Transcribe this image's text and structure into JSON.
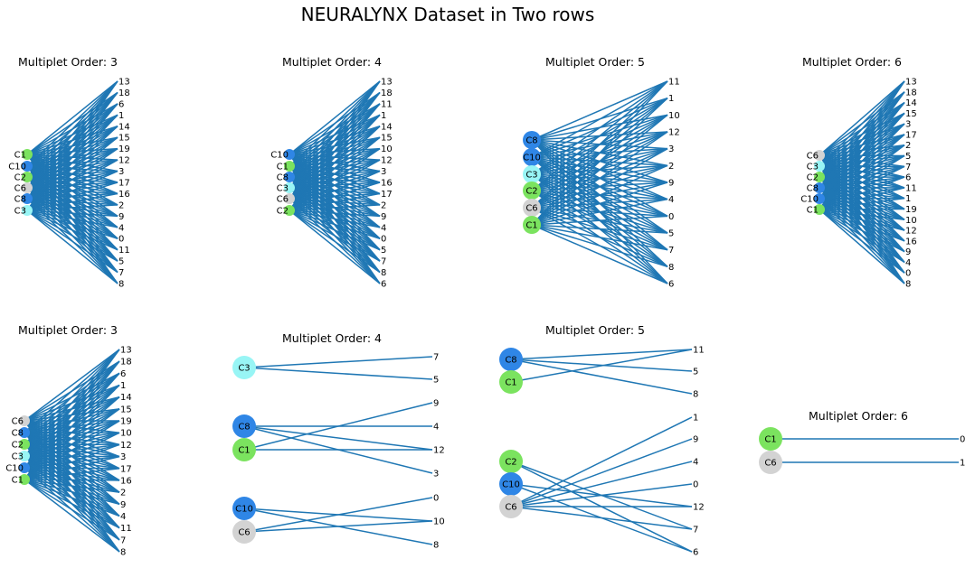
{
  "title": "NEURALYNX Dataset in Two rows",
  "colors": {
    "edge": "#1f77b4",
    "C1": "#7be35f",
    "C2": "#7be35f",
    "C3": "#98f5f5",
    "C6": "#d3d3d3",
    "C8": "#2f86e6",
    "C10": "#2f86e6"
  },
  "chart_data": [
    {
      "type": "network",
      "title": "Multiplet Order: 3",
      "groups": [
        {
          "left": [
            "C1",
            "C10",
            "C2",
            "C6",
            "C8",
            "C3"
          ],
          "right": [
            "13",
            "18",
            "6",
            "1",
            "14",
            "15",
            "19",
            "12",
            "3",
            "17",
            "16",
            "2",
            "9",
            "4",
            "0",
            "11",
            "5",
            "7",
            "8"
          ],
          "edge_rule": "complete"
        }
      ]
    },
    {
      "type": "network",
      "title": "Multiplet Order: 4",
      "groups": [
        {
          "left": [
            "C10",
            "C1",
            "C8",
            "C3",
            "C6",
            "C2"
          ],
          "right": [
            "13",
            "18",
            "11",
            "1",
            "14",
            "15",
            "10",
            "12",
            "3",
            "16",
            "17",
            "2",
            "9",
            "4",
            "0",
            "5",
            "7",
            "8",
            "6"
          ],
          "edge_rule": "complete"
        }
      ]
    },
    {
      "type": "network",
      "title": "Multiplet Order: 5",
      "groups": [
        {
          "left": [
            "C8",
            "C10",
            "C3",
            "C2",
            "C6",
            "C1"
          ],
          "right": [
            "11",
            "1",
            "10",
            "12",
            "3",
            "2",
            "9",
            "4",
            "0",
            "5",
            "7",
            "8",
            "6"
          ],
          "edge_rule": "complete"
        }
      ]
    },
    {
      "type": "network",
      "title": "Multiplet Order: 6",
      "groups": [
        {
          "left": [
            "C6",
            "C3",
            "C2",
            "C8",
            "C10",
            "C1"
          ],
          "right": [
            "13",
            "18",
            "14",
            "15",
            "3",
            "17",
            "2",
            "5",
            "7",
            "6",
            "11",
            "1",
            "19",
            "10",
            "12",
            "16",
            "9",
            "4",
            "0",
            "8"
          ],
          "edge_rule": "complete"
        }
      ]
    },
    {
      "type": "network",
      "title": "Multiplet Order: 3",
      "groups": [
        {
          "left": [
            "C6",
            "C8",
            "C2",
            "C3",
            "C10",
            "C1"
          ],
          "right": [
            "13",
            "18",
            "6",
            "1",
            "14",
            "15",
            "19",
            "10",
            "12",
            "3",
            "17",
            "16",
            "2",
            "9",
            "4",
            "11",
            "7",
            "8"
          ],
          "edge_rule": "complete"
        }
      ]
    },
    {
      "type": "network",
      "title": "Multiplet Order: 4",
      "groups": [
        {
          "left": [
            "C3"
          ],
          "right": [
            "7",
            "5"
          ],
          "edges": [
            [
              0,
              0
            ],
            [
              0,
              1
            ]
          ]
        },
        {
          "left": [
            "C8",
            "C1"
          ],
          "right": [
            "9",
            "4",
            "12",
            "3"
          ],
          "edges": [
            [
              0,
              1
            ],
            [
              0,
              2
            ],
            [
              0,
              3
            ],
            [
              1,
              0
            ],
            [
              1,
              2
            ]
          ]
        },
        {
          "left": [
            "C10",
            "C6"
          ],
          "right": [
            "0",
            "10",
            "8"
          ],
          "edges": [
            [
              0,
              1
            ],
            [
              0,
              2
            ],
            [
              1,
              0
            ],
            [
              1,
              1
            ]
          ]
        }
      ]
    },
    {
      "type": "network",
      "title": "Multiplet Order: 5",
      "groups": [
        {
          "left": [
            "C8",
            "C1"
          ],
          "right": [
            "11",
            "5",
            "8"
          ],
          "edges": [
            [
              0,
              0
            ],
            [
              0,
              1
            ],
            [
              0,
              2
            ],
            [
              1,
              0
            ]
          ]
        },
        {
          "left": [
            "C2",
            "C10",
            "C6"
          ],
          "right": [
            "1",
            "9",
            "4",
            "0",
            "12",
            "7",
            "6"
          ],
          "edges": [
            [
              0,
              5
            ],
            [
              0,
              6
            ],
            [
              1,
              4
            ],
            [
              1,
              6
            ],
            [
              2,
              0
            ],
            [
              2,
              1
            ],
            [
              2,
              2
            ],
            [
              2,
              3
            ],
            [
              2,
              4
            ],
            [
              2,
              5
            ]
          ]
        }
      ]
    },
    {
      "type": "network",
      "title": "Multiplet Order: 6",
      "groups": [
        {
          "left": [
            "C1",
            "C6"
          ],
          "right": [
            "0",
            "1"
          ],
          "edges": [
            [
              0,
              0
            ],
            [
              1,
              1
            ]
          ]
        }
      ]
    }
  ]
}
